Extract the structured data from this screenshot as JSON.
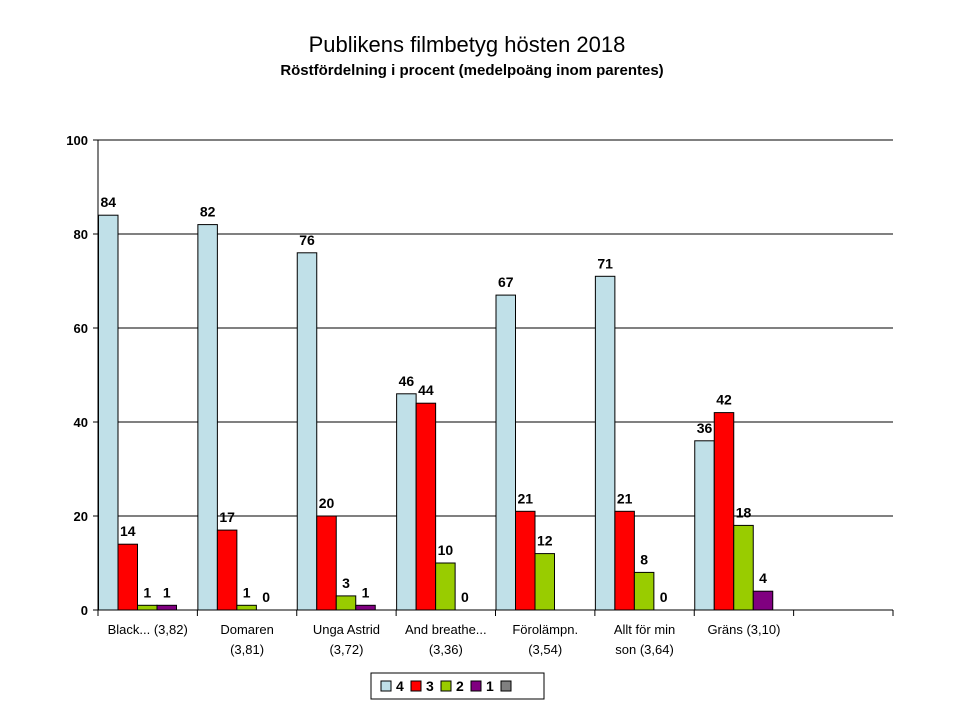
{
  "chart_data": {
    "type": "bar",
    "title": "Publikens filmbetyg hösten 2018",
    "subtitle": "Röstfördelning i procent (medelpoäng inom parentes)",
    "ylim": [
      0,
      100
    ],
    "yticks": [
      0,
      20,
      40,
      60,
      80,
      100
    ],
    "grid": true,
    "legend_position": "bottom",
    "categories": [
      [
        "Black... (3,82)"
      ],
      [
        "Domaren",
        "(3,81)"
      ],
      [
        "Unga Astrid",
        "(3,72)"
      ],
      [
        "And breathe...",
        "(3,36)"
      ],
      [
        "Förolämpn.",
        "(3,54)"
      ],
      [
        "Allt för min",
        "son (3,64)"
      ],
      [
        "Gräns (3,10)"
      ],
      [
        ""
      ]
    ],
    "series": [
      {
        "name": "4",
        "color": "#c0e0e8",
        "values": [
          84,
          82,
          76,
          46,
          67,
          71,
          36,
          null
        ]
      },
      {
        "name": "3",
        "color": "#ff0000",
        "values": [
          14,
          17,
          20,
          44,
          21,
          21,
          42,
          null
        ]
      },
      {
        "name": "2",
        "color": "#99cc00",
        "values": [
          1,
          1,
          3,
          10,
          12,
          8,
          18,
          null
        ]
      },
      {
        "name": "1",
        "color": "#800080",
        "values": [
          1,
          0,
          1,
          0,
          null,
          0,
          4,
          null
        ]
      },
      {
        "name": "",
        "color": "#808080",
        "values": [
          null,
          null,
          null,
          null,
          null,
          null,
          null,
          null
        ]
      }
    ]
  }
}
